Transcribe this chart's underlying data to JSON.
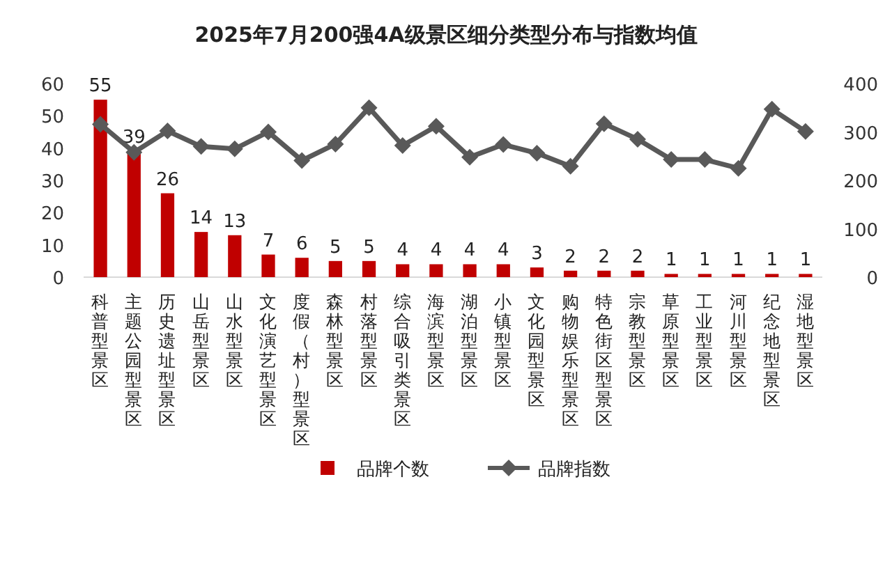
{
  "chart_data": {
    "type": "bar",
    "title": "2025年7月200强4A级景区细分类型分布与指数均值",
    "categories": [
      "科普型景区",
      "主题公园型景区",
      "历史遗址型景区",
      "山岳型景区",
      "山水型景区",
      "文化演艺型景区",
      "度假（村）型景区",
      "森林型景区",
      "村落型景区",
      "综合吸引类景区",
      "海滨型景区",
      "湖泊型景区",
      "小镇型景区",
      "文化园型景区",
      "购物娱乐型景区",
      "特色街区型景区",
      "宗教型景区",
      "草原型景区",
      "工业型景区",
      "河川型景区",
      "纪念地型景区",
      "湿地型景区"
    ],
    "series": [
      {
        "name": "品牌个数",
        "color": "#c00000",
        "values": [
          55,
          39,
          26,
          14,
          13,
          7,
          6,
          5,
          5,
          4,
          4,
          4,
          4,
          3,
          2,
          2,
          2,
          1,
          1,
          1,
          1,
          1
        ],
        "value_labels": [
          "55",
          "39",
          "26",
          "14",
          "13",
          "7",
          "6",
          "5",
          "5",
          "4",
          "4",
          "4",
          "4",
          "3",
          "2",
          "2",
          "2",
          "1",
          "1",
          "1",
          "1",
          "1"
        ]
      },
      {
        "name": "品牌指数",
        "type": "line",
        "axis": "y2",
        "color": "#595959",
        "marker": "diamond",
        "values": [
          316,
          258,
          302,
          270,
          265,
          300,
          241,
          275,
          350,
          272,
          312,
          248,
          274,
          256,
          229,
          317,
          285,
          243,
          243,
          225,
          347,
          301
        ]
      }
    ],
    "ylim": [
      0,
      60
    ],
    "yticks": [
      0,
      10,
      20,
      30,
      40,
      50,
      60
    ],
    "y2lim": [
      0,
      400
    ],
    "y2ticks": [
      0,
      100,
      200,
      300,
      400
    ],
    "grid": false,
    "legend": "bottom"
  }
}
